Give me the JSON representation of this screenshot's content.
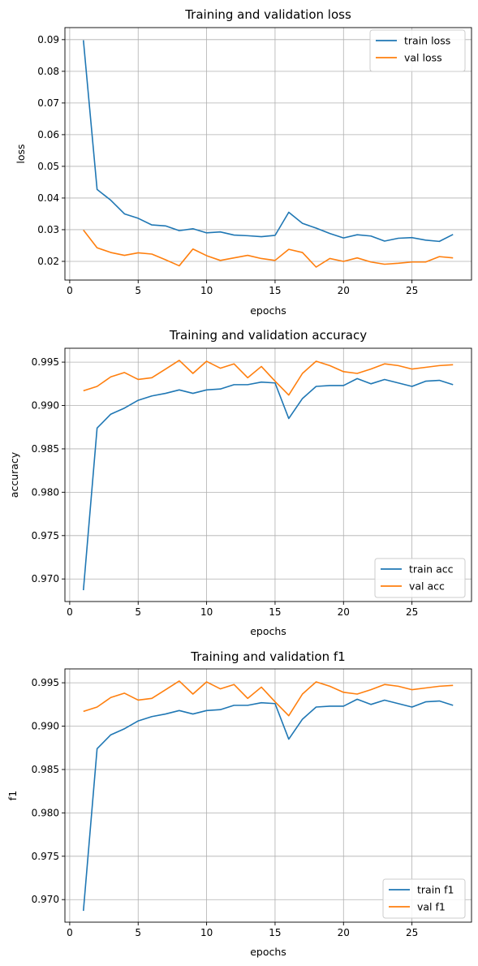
{
  "chart_data": [
    {
      "type": "line",
      "title": "Training and validation loss",
      "xlabel": "epochs",
      "ylabel": "loss",
      "xlim": [
        -0.35,
        29.35
      ],
      "ylim": [
        0.0141,
        0.0938
      ],
      "xticks": [
        0,
        5,
        10,
        15,
        20,
        25
      ],
      "yticks": [
        0.02,
        0.03,
        0.04,
        0.05,
        0.06,
        0.07,
        0.08,
        0.09
      ],
      "ytick_labels": [
        "0.02",
        "0.03",
        "0.04",
        "0.05",
        "0.06",
        "0.07",
        "0.08",
        "0.09"
      ],
      "grid": true,
      "legend_position": "top-right",
      "x": [
        1,
        2,
        3,
        4,
        5,
        6,
        7,
        8,
        9,
        10,
        11,
        12,
        13,
        14,
        15,
        16,
        17,
        18,
        19,
        20,
        21,
        22,
        23,
        24,
        25,
        26,
        27,
        28
      ],
      "series": [
        {
          "name": "train loss",
          "color": "#1f77b4",
          "values": [
            0.0898,
            0.0427,
            0.0393,
            0.035,
            0.0336,
            0.0315,
            0.0312,
            0.0297,
            0.0303,
            0.029,
            0.0293,
            0.0283,
            0.0281,
            0.0278,
            0.0282,
            0.0355,
            0.032,
            0.0305,
            0.0288,
            0.0274,
            0.0284,
            0.028,
            0.0264,
            0.0273,
            0.0275,
            0.0267,
            0.0263,
            0.0285
          ]
        },
        {
          "name": "val loss",
          "color": "#ff7f0e",
          "values": [
            0.0299,
            0.0243,
            0.0228,
            0.0219,
            0.0227,
            0.0223,
            0.0205,
            0.0186,
            0.0239,
            0.0218,
            0.0203,
            0.0211,
            0.0219,
            0.0209,
            0.0203,
            0.0238,
            0.0228,
            0.0182,
            0.0209,
            0.02,
            0.0211,
            0.0198,
            0.0191,
            0.0194,
            0.0198,
            0.0198,
            0.0215,
            0.0211
          ]
        }
      ]
    },
    {
      "type": "line",
      "title": "Training and validation accuracy",
      "xlabel": "epochs",
      "ylabel": "accuracy",
      "xlim": [
        -0.35,
        29.35
      ],
      "ylim": [
        0.9674,
        0.9966
      ],
      "xticks": [
        0,
        5,
        10,
        15,
        20,
        25
      ],
      "yticks": [
        0.97,
        0.975,
        0.98,
        0.985,
        0.99,
        0.995
      ],
      "ytick_labels": [
        "0.970",
        "0.975",
        "0.980",
        "0.985",
        "0.990",
        "0.995"
      ],
      "grid": true,
      "legend_position": "bottom-right",
      "x": [
        1,
        2,
        3,
        4,
        5,
        6,
        7,
        8,
        9,
        10,
        11,
        12,
        13,
        14,
        15,
        16,
        17,
        18,
        19,
        20,
        21,
        22,
        23,
        24,
        25,
        26,
        27,
        28
      ],
      "series": [
        {
          "name": "train acc",
          "color": "#1f77b4",
          "values": [
            0.9687,
            0.9874,
            0.989,
            0.9897,
            0.9906,
            0.9911,
            0.9914,
            0.9918,
            0.9914,
            0.9918,
            0.9919,
            0.9924,
            0.9924,
            0.9927,
            0.9926,
            0.9885,
            0.9908,
            0.9922,
            0.9923,
            0.9923,
            0.9931,
            0.9925,
            0.993,
            0.9926,
            0.9922,
            0.9928,
            0.9929,
            0.9924
          ]
        },
        {
          "name": "val acc",
          "color": "#ff7f0e",
          "values": [
            0.9917,
            0.9922,
            0.9933,
            0.9938,
            0.993,
            0.9932,
            0.9942,
            0.9952,
            0.9937,
            0.9951,
            0.9943,
            0.9948,
            0.9932,
            0.9945,
            0.9928,
            0.9912,
            0.9937,
            0.9951,
            0.9946,
            0.9939,
            0.9937,
            0.9942,
            0.9948,
            0.9946,
            0.9942,
            0.9944,
            0.9946,
            0.9947
          ]
        }
      ]
    },
    {
      "type": "line",
      "title": "Training and validation f1",
      "xlabel": "epochs",
      "ylabel": "f1",
      "xlim": [
        -0.35,
        29.35
      ],
      "ylim": [
        0.9674,
        0.9966
      ],
      "xticks": [
        0,
        5,
        10,
        15,
        20,
        25
      ],
      "yticks": [
        0.97,
        0.975,
        0.98,
        0.985,
        0.99,
        0.995
      ],
      "ytick_labels": [
        "0.970",
        "0.975",
        "0.980",
        "0.985",
        "0.990",
        "0.995"
      ],
      "grid": true,
      "legend_position": "bottom-right",
      "x": [
        1,
        2,
        3,
        4,
        5,
        6,
        7,
        8,
        9,
        10,
        11,
        12,
        13,
        14,
        15,
        16,
        17,
        18,
        19,
        20,
        21,
        22,
        23,
        24,
        25,
        26,
        27,
        28
      ],
      "series": [
        {
          "name": "train f1",
          "color": "#1f77b4",
          "values": [
            0.9687,
            0.9874,
            0.989,
            0.9897,
            0.9906,
            0.9911,
            0.9914,
            0.9918,
            0.9914,
            0.9918,
            0.9919,
            0.9924,
            0.9924,
            0.9927,
            0.9926,
            0.9885,
            0.9908,
            0.9922,
            0.9923,
            0.9923,
            0.9931,
            0.9925,
            0.993,
            0.9926,
            0.9922,
            0.9928,
            0.9929,
            0.9924
          ]
        },
        {
          "name": "val f1",
          "color": "#ff7f0e",
          "values": [
            0.9917,
            0.9922,
            0.9933,
            0.9938,
            0.993,
            0.9932,
            0.9942,
            0.9952,
            0.9937,
            0.9951,
            0.9943,
            0.9948,
            0.9932,
            0.9945,
            0.9928,
            0.9912,
            0.9937,
            0.9951,
            0.9946,
            0.9939,
            0.9937,
            0.9942,
            0.9948,
            0.9946,
            0.9942,
            0.9944,
            0.9946,
            0.9947
          ]
        }
      ]
    }
  ]
}
